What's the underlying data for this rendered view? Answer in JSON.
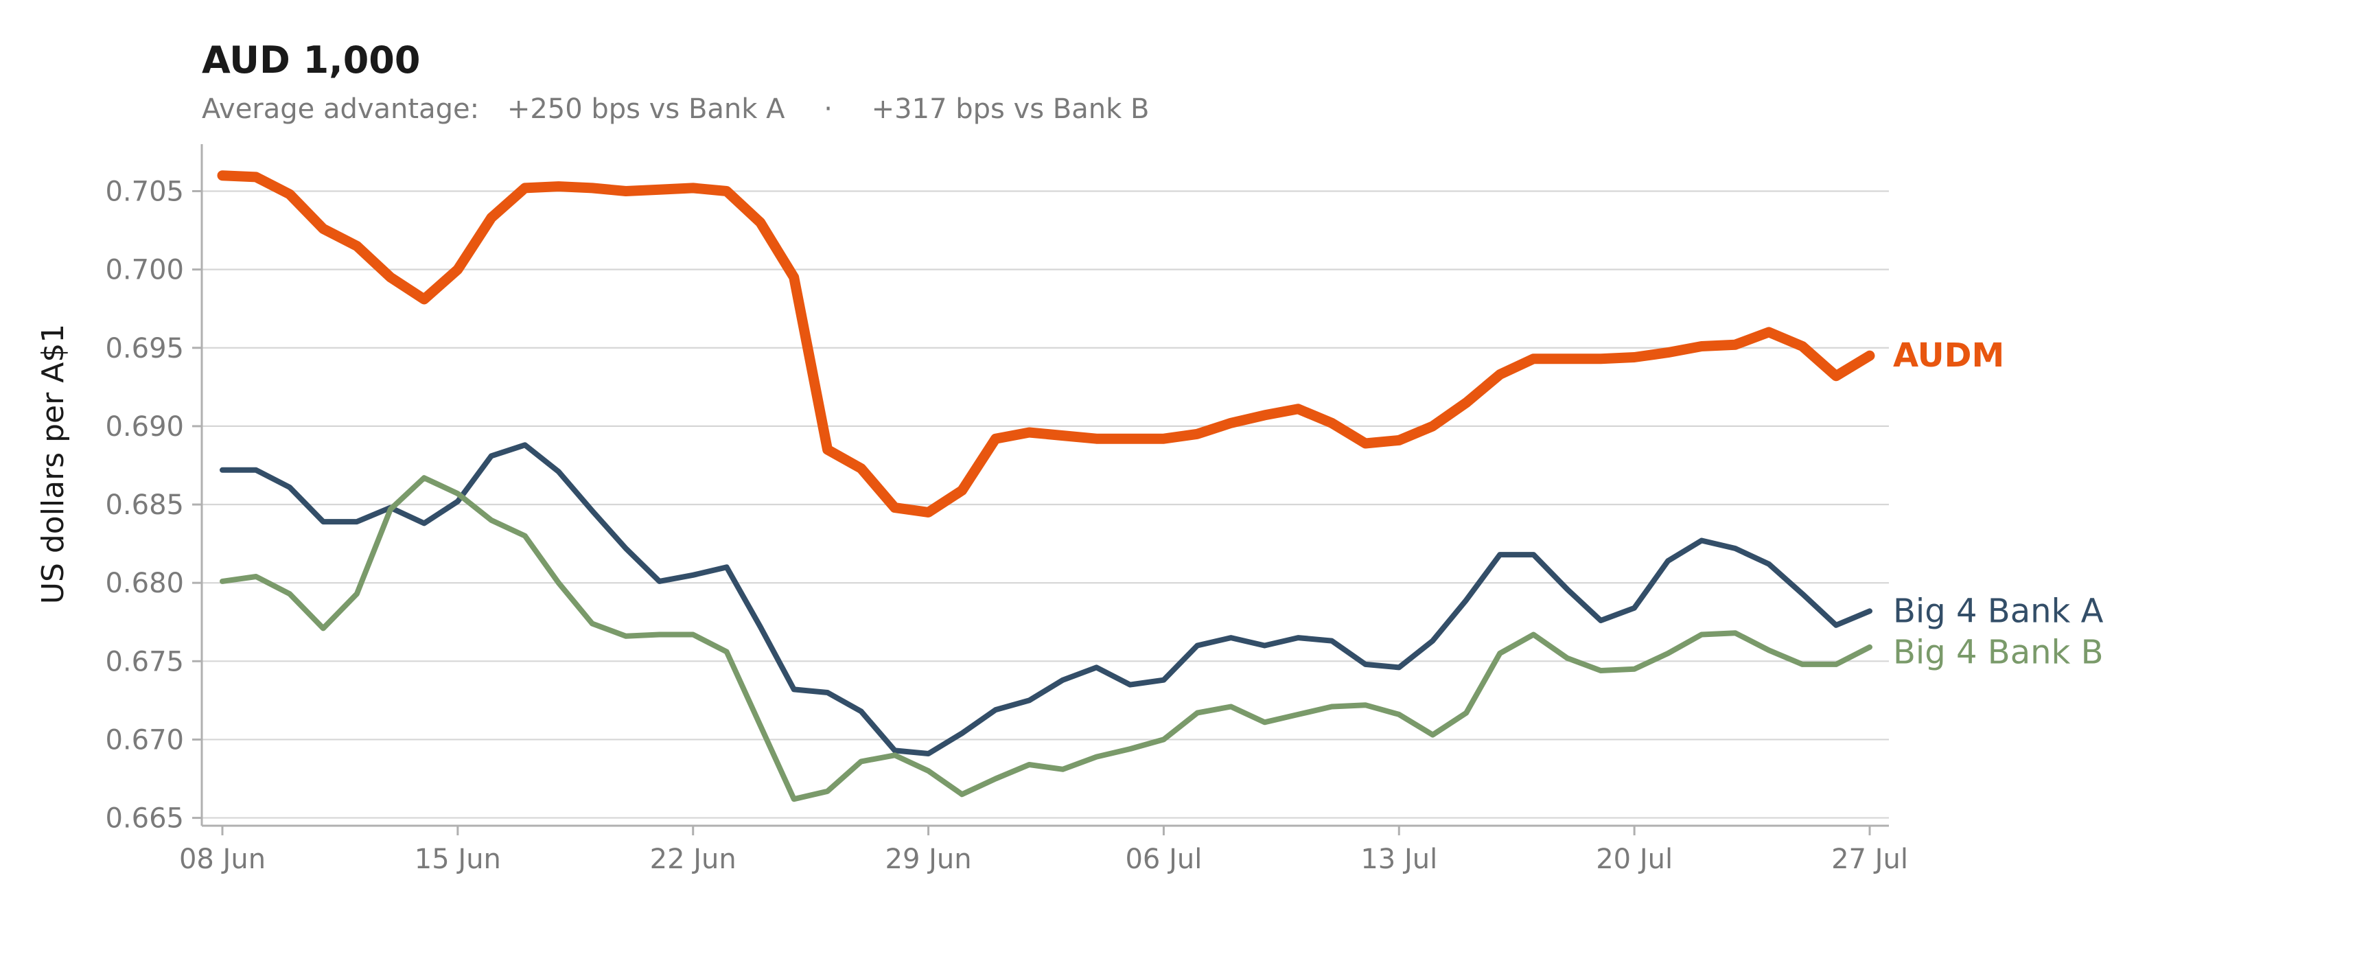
{
  "chart_data": {
    "type": "line",
    "title": "AUD 1,000",
    "subtitle": {
      "prefix": "Average advantage:",
      "vs_a": "+250 bps vs Bank A",
      "separator": "·",
      "vs_b": "+317 bps vs Bank B"
    },
    "xlabel": "",
    "ylabel": "US dollars per A$1",
    "ylim": [
      0.6645,
      0.708
    ],
    "yticks": [
      0.665,
      0.67,
      0.675,
      0.68,
      0.685,
      0.69,
      0.695,
      0.7,
      0.705
    ],
    "ytick_labels": [
      "0.665",
      "0.670",
      "0.675",
      "0.680",
      "0.685",
      "0.690",
      "0.695",
      "0.700",
      "0.705"
    ],
    "x_start": "2025-06-08",
    "x_end": "2025-07-27",
    "xticks": [
      "2025-06-08",
      "2025-06-15",
      "2025-06-22",
      "2025-06-29",
      "2025-07-06",
      "2025-07-13",
      "2025-07-20",
      "2025-07-27"
    ],
    "xtick_labels": [
      "08 Jun",
      "15 Jun",
      "22 Jun",
      "29 Jun",
      "06 Jul",
      "13 Jul",
      "20 Jul",
      "27 Jul"
    ],
    "grid": "horizontal",
    "legend": "inline-right",
    "series": [
      {
        "name": "AUDM",
        "color": "#e8560f",
        "emphasis": "bold",
        "x": [
          "2025-06-08",
          "2025-06-09",
          "2025-06-10",
          "2025-06-11",
          "2025-06-12",
          "2025-06-13",
          "2025-06-14",
          "2025-06-15",
          "2025-06-16",
          "2025-06-17",
          "2025-06-18",
          "2025-06-19",
          "2025-06-20",
          "2025-06-21",
          "2025-06-22",
          "2025-06-23",
          "2025-06-24",
          "2025-06-25",
          "2025-06-26",
          "2025-06-27",
          "2025-06-28",
          "2025-06-29",
          "2025-06-30",
          "2025-07-01",
          "2025-07-02",
          "2025-07-03",
          "2025-07-04",
          "2025-07-05",
          "2025-07-06",
          "2025-07-07",
          "2025-07-08",
          "2025-07-09",
          "2025-07-10",
          "2025-07-11",
          "2025-07-12",
          "2025-07-13",
          "2025-07-14",
          "2025-07-15",
          "2025-07-16",
          "2025-07-17",
          "2025-07-18",
          "2025-07-19",
          "2025-07-20",
          "2025-07-21",
          "2025-07-22",
          "2025-07-23",
          "2025-07-24",
          "2025-07-25",
          "2025-07-26",
          "2025-07-27"
        ],
        "values": [
          0.706,
          0.7059,
          0.7048,
          0.7026,
          0.7015,
          0.6995,
          0.6981,
          0.7,
          0.7033,
          0.7052,
          0.7053,
          0.7052,
          0.705,
          0.7051,
          0.7052,
          0.705,
          0.703,
          0.6995,
          0.6885,
          0.6873,
          0.6848,
          0.6845,
          0.6859,
          0.6892,
          0.6896,
          0.6894,
          0.6892,
          0.6892,
          0.6892,
          0.6895,
          0.6902,
          0.6907,
          0.6911,
          0.6902,
          0.6889,
          0.6891,
          0.69,
          0.6915,
          0.6933,
          0.6943,
          0.6943,
          0.6943,
          0.6944,
          0.6947,
          0.6951,
          0.6952,
          0.696,
          0.6951,
          0.6932,
          0.6945
        ]
      },
      {
        "name": "Big 4 Bank A",
        "color": "#334e68",
        "emphasis": "normal",
        "x": [
          "2025-06-08",
          "2025-06-09",
          "2025-06-10",
          "2025-06-11",
          "2025-06-12",
          "2025-06-13",
          "2025-06-14",
          "2025-06-15",
          "2025-06-16",
          "2025-06-17",
          "2025-06-18",
          "2025-06-19",
          "2025-06-20",
          "2025-06-21",
          "2025-06-22",
          "2025-06-23",
          "2025-06-24",
          "2025-06-25",
          "2025-06-26",
          "2025-06-27",
          "2025-06-28",
          "2025-06-29",
          "2025-06-30",
          "2025-07-01",
          "2025-07-02",
          "2025-07-03",
          "2025-07-04",
          "2025-07-05",
          "2025-07-06",
          "2025-07-07",
          "2025-07-08",
          "2025-07-09",
          "2025-07-10",
          "2025-07-11",
          "2025-07-12",
          "2025-07-13",
          "2025-07-14",
          "2025-07-15",
          "2025-07-16",
          "2025-07-17",
          "2025-07-18",
          "2025-07-19",
          "2025-07-20",
          "2025-07-21",
          "2025-07-22",
          "2025-07-23",
          "2025-07-24",
          "2025-07-25",
          "2025-07-26",
          "2025-07-27"
        ],
        "values": [
          0.6872,
          0.6872,
          0.6861,
          0.6839,
          0.6839,
          0.6848,
          0.6838,
          0.6852,
          0.6881,
          0.6888,
          0.6871,
          0.6846,
          0.6822,
          0.6801,
          0.6805,
          0.681,
          0.6772,
          0.6732,
          0.673,
          0.6718,
          0.6693,
          0.6691,
          0.6704,
          0.6719,
          0.6725,
          0.6738,
          0.6746,
          0.6735,
          0.6738,
          0.676,
          0.6765,
          0.676,
          0.6765,
          0.6763,
          0.6748,
          0.6746,
          0.6763,
          0.6789,
          0.6818,
          0.6818,
          0.6796,
          0.6776,
          0.6784,
          0.6814,
          0.6827,
          0.6822,
          0.6812,
          0.6793,
          0.6773,
          0.6782
        ]
      },
      {
        "name": "Big 4 Bank B",
        "color": "#7a9a6a",
        "emphasis": "normal",
        "x": [
          "2025-06-08",
          "2025-06-09",
          "2025-06-10",
          "2025-06-11",
          "2025-06-12",
          "2025-06-13",
          "2025-06-14",
          "2025-06-15",
          "2025-06-16",
          "2025-06-17",
          "2025-06-18",
          "2025-06-19",
          "2025-06-20",
          "2025-06-21",
          "2025-06-22",
          "2025-06-23",
          "2025-06-24",
          "2025-06-25",
          "2025-06-26",
          "2025-06-27",
          "2025-06-28",
          "2025-06-29",
          "2025-06-30",
          "2025-07-01",
          "2025-07-02",
          "2025-07-03",
          "2025-07-04",
          "2025-07-05",
          "2025-07-06",
          "2025-07-07",
          "2025-07-08",
          "2025-07-09",
          "2025-07-10",
          "2025-07-11",
          "2025-07-12",
          "2025-07-13",
          "2025-07-14",
          "2025-07-15",
          "2025-07-16",
          "2025-07-17",
          "2025-07-18",
          "2025-07-19",
          "2025-07-20",
          "2025-07-21",
          "2025-07-22",
          "2025-07-23",
          "2025-07-24",
          "2025-07-25",
          "2025-07-26",
          "2025-07-27"
        ],
        "values": [
          0.6801,
          0.6804,
          0.6793,
          0.6771,
          0.6793,
          0.6847,
          0.6867,
          0.6857,
          0.684,
          0.683,
          0.68,
          0.6774,
          0.6766,
          0.6767,
          0.6767,
          0.6756,
          0.6709,
          0.6662,
          0.6667,
          0.6686,
          0.669,
          0.668,
          0.6665,
          0.6675,
          0.6684,
          0.6681,
          0.6689,
          0.6694,
          0.67,
          0.6717,
          0.6721,
          0.6711,
          0.6716,
          0.6721,
          0.6722,
          0.6716,
          0.6703,
          0.6717,
          0.6755,
          0.6767,
          0.6752,
          0.6744,
          0.6745,
          0.6755,
          0.6767,
          0.6768,
          0.6757,
          0.6748,
          0.6748,
          0.6759
        ]
      }
    ]
  }
}
